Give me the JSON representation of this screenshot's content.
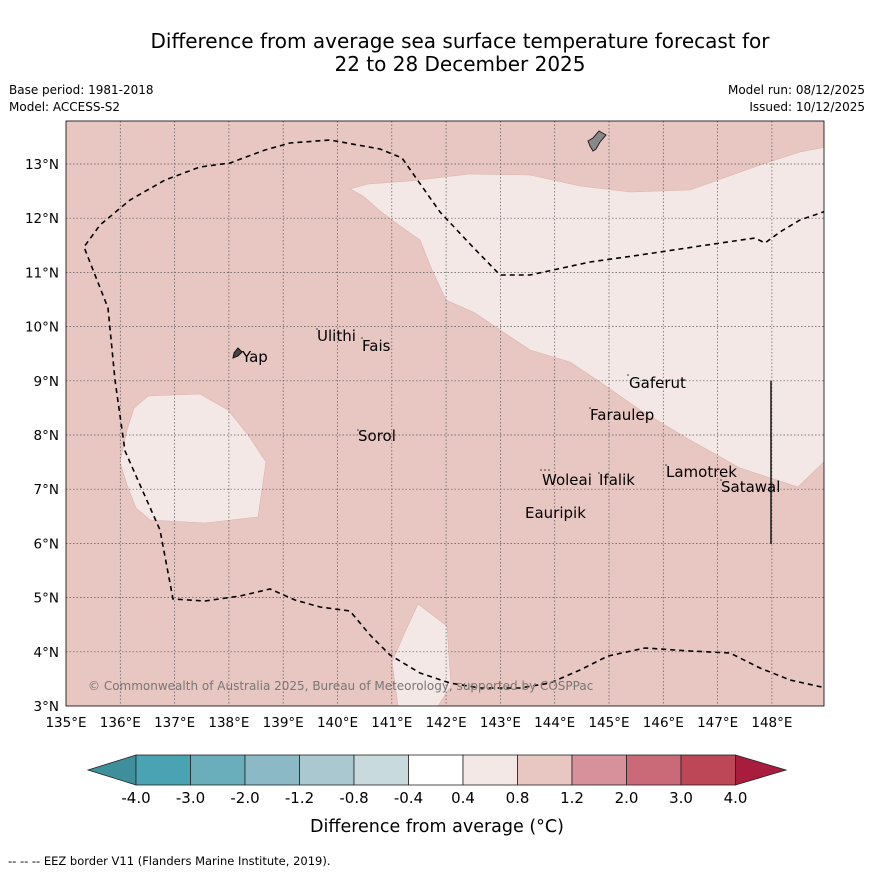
{
  "header": {
    "title_line1": "Difference from average sea surface temperature forecast for",
    "title_line2": "22 to 28 December 2025",
    "base_period": "Base period: 1981-2018",
    "model": "Model: ACCESS-S2",
    "model_run": "Model run: 08/12/2025",
    "issued": "Issued: 10/12/2025"
  },
  "map": {
    "copyright": "© Commonwealth of Australia 2025, Bureau of Meteorology, supported by COSPPac",
    "lon_ticks": [
      "135°E",
      "136°E",
      "137°E",
      "138°E",
      "139°E",
      "140°E",
      "141°E",
      "142°E",
      "143°E",
      "144°E",
      "145°E",
      "146°E",
      "147°E",
      "148°E"
    ],
    "lat_ticks": [
      "3°N",
      "4°N",
      "5°N",
      "6°N",
      "7°N",
      "8°N",
      "9°N",
      "10°N",
      "11°N",
      "12°N",
      "13°N"
    ],
    "places": [
      {
        "name": "Yap"
      },
      {
        "name": "Ulithi"
      },
      {
        "name": "Fais"
      },
      {
        "name": "Sorol"
      },
      {
        "name": "Gaferut"
      },
      {
        "name": "Faraulep"
      },
      {
        "name": "Woleai"
      },
      {
        "name": "Ifalik"
      },
      {
        "name": "Eauripik"
      },
      {
        "name": "Lamotrek"
      },
      {
        "name": "Satawal"
      }
    ],
    "colors": {
      "background_anomaly": "#e8c6c2",
      "light_anomaly": "#f4e8e6",
      "land": "#888888"
    }
  },
  "colorbar": {
    "label": "Difference from average (°C)",
    "tick_labels": [
      "-4.0",
      "-3.0",
      "-2.0",
      "-1.2",
      "-0.8",
      "-0.4",
      "0.4",
      "0.8",
      "1.2",
      "2.0",
      "3.0",
      "4.0"
    ],
    "colors": [
      "#3e8e9c",
      "#49a3b3",
      "#6aaebc",
      "#8bb9c5",
      "#aac8cf",
      "#c9dade",
      "#ffffff",
      "#f4e8e6",
      "#e8c6c2",
      "#d7919a",
      "#ca6a78",
      "#bd4757",
      "#a81d3d"
    ]
  },
  "footer": {
    "legend_text": "--  --  -- EEZ border V11 (Flanders Marine Institute, 2019)."
  }
}
